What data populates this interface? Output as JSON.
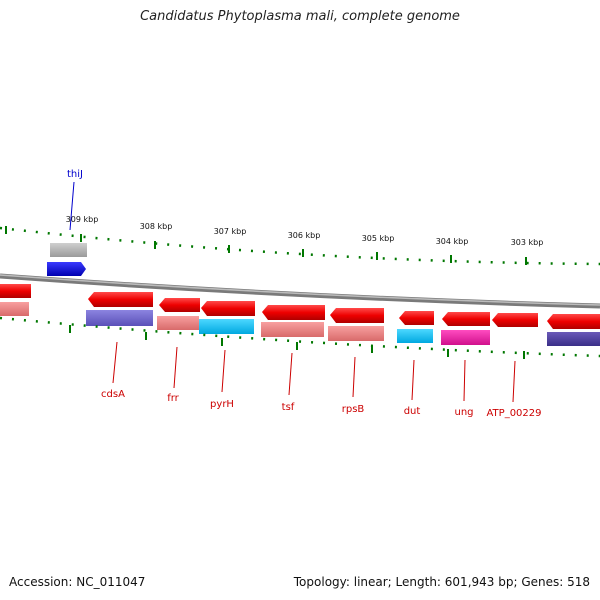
{
  "title": "Candidatus Phytoplasma mali, complete genome",
  "footer": {
    "accession": "Accession: NC_011047",
    "summary": "Topology: linear; Length: 601,943 bp; Genes: 518"
  },
  "scale": {
    "labels": [
      "309 kbp",
      "308 kbp",
      "307 kbp",
      "306 kbp",
      "305 kbp",
      "304 kbp",
      "303 kbp"
    ]
  },
  "gene_labels": [
    "thiJ",
    "cdsA",
    "frr",
    "pyrH",
    "tsf",
    "rpsB",
    "dut",
    "ung",
    "ATP_00229"
  ],
  "colors": {
    "forward_gene": "#ee0000",
    "gene_label": "#cc0000",
    "thij_label": "#0000cc",
    "backbone": "#888888",
    "tick": "#007700"
  }
}
